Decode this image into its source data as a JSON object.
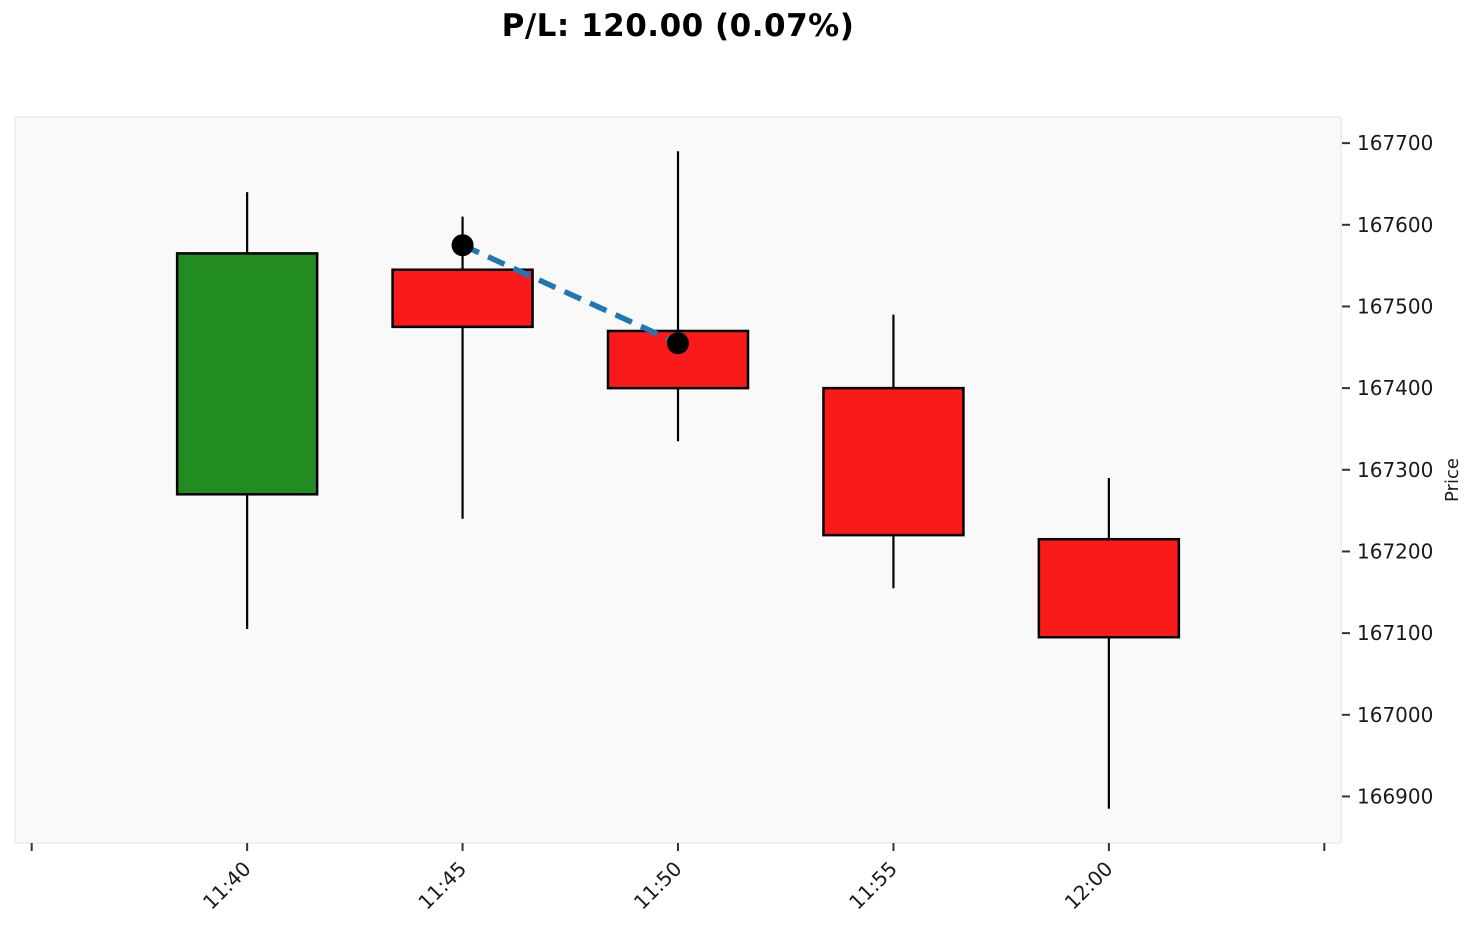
{
  "chart_data": {
    "type": "candlestick",
    "title": "P/L: 120.00 (0.07%)",
    "ylabel": "Price",
    "ylabel_side": "right",
    "categories": [
      "11:40",
      "11:45",
      "11:50",
      "11:55",
      "12:00"
    ],
    "x_tick_labels": [
      "",
      "11:40",
      "11:45",
      "11:50",
      "11:55",
      "12:00",
      ""
    ],
    "candles": [
      {
        "time": "11:40",
        "open": 167270,
        "high": 167640,
        "low": 167105,
        "close": 167565,
        "direction": "up"
      },
      {
        "time": "11:45",
        "open": 167545,
        "high": 167610,
        "low": 167240,
        "close": 167475,
        "direction": "down"
      },
      {
        "time": "11:50",
        "open": 167470,
        "high": 167690,
        "low": 167335,
        "close": 167400,
        "direction": "down"
      },
      {
        "time": "11:55",
        "open": 167400,
        "high": 167490,
        "low": 167155,
        "close": 167220,
        "direction": "down"
      },
      {
        "time": "12:00",
        "open": 167215,
        "high": 167290,
        "low": 166885,
        "close": 167095,
        "direction": "down"
      }
    ],
    "y_ticks": [
      167700,
      167600,
      167500,
      167400,
      167300,
      167200,
      167100,
      167000,
      166900
    ],
    "ylim": [
      166843,
      167732
    ],
    "grid": false,
    "legend": null,
    "trade_line": {
      "entry": {
        "time": "11:45",
        "price": 167575
      },
      "exit": {
        "time": "11:50",
        "price": 167455
      },
      "line_style": "dashed",
      "line_color": "#1f77b4",
      "marker_color": "#000000"
    },
    "colors": {
      "up": "#228b22",
      "down": "#fb1a1a",
      "wick": "#000000",
      "body_border": "#000000",
      "plot_background": "#f9f9f9",
      "figure_background": "#ffffff",
      "spine": "#ececec",
      "tick_mark": "#333333",
      "tick_text": "#1a1a1a",
      "title_text": "#000000"
    }
  }
}
